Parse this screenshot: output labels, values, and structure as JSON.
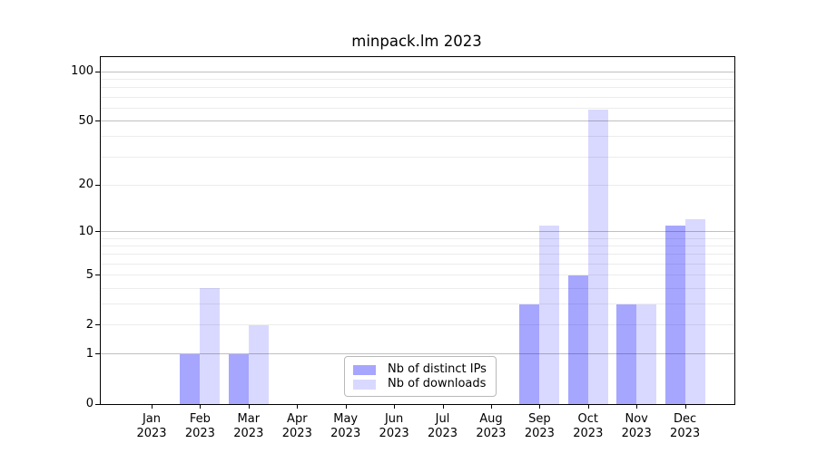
{
  "title": "minpack.lm 2023",
  "legend": {
    "position": "bottom-center",
    "items": [
      {
        "label": "Nb of distinct IPs",
        "color": "rgba(0,0,255,0.35)"
      },
      {
        "label": "Nb of downloads",
        "color": "rgba(0,0,255,0.15)"
      }
    ]
  },
  "chart_data": {
    "type": "bar",
    "title": "minpack.lm 2023",
    "categories": [
      "Jan 2023",
      "Feb 2023",
      "Mar 2023",
      "Apr 2023",
      "May 2023",
      "Jun 2023",
      "Jul 2023",
      "Aug 2023",
      "Sep 2023",
      "Oct 2023",
      "Nov 2023",
      "Dec 2023"
    ],
    "series": [
      {
        "name": "Nb of distinct IPs",
        "color": "rgba(0,0,255,0.35)",
        "values": [
          0,
          1,
          1,
          0,
          0,
          0,
          0,
          0,
          3,
          5,
          3,
          11
        ]
      },
      {
        "name": "Nb of downloads",
        "color": "rgba(0,0,255,0.15)",
        "values": [
          0,
          4,
          2,
          0,
          0,
          0,
          0,
          0,
          11,
          59,
          3,
          12
        ]
      }
    ],
    "yscale": "log1p",
    "ylim": [
      0,
      123
    ],
    "y_ticks": [
      0,
      1,
      2,
      5,
      10,
      20,
      50,
      100
    ],
    "grid_minor": [
      2,
      3,
      4,
      5,
      6,
      7,
      8,
      9,
      20,
      30,
      40,
      60,
      70,
      80,
      90
    ],
    "grid_major": [
      1,
      10,
      50,
      100
    ],
    "grid_minor_color": "#ececec",
    "grid_major_color": "#c0c0c0",
    "xlabel": "",
    "ylabel": ""
  }
}
